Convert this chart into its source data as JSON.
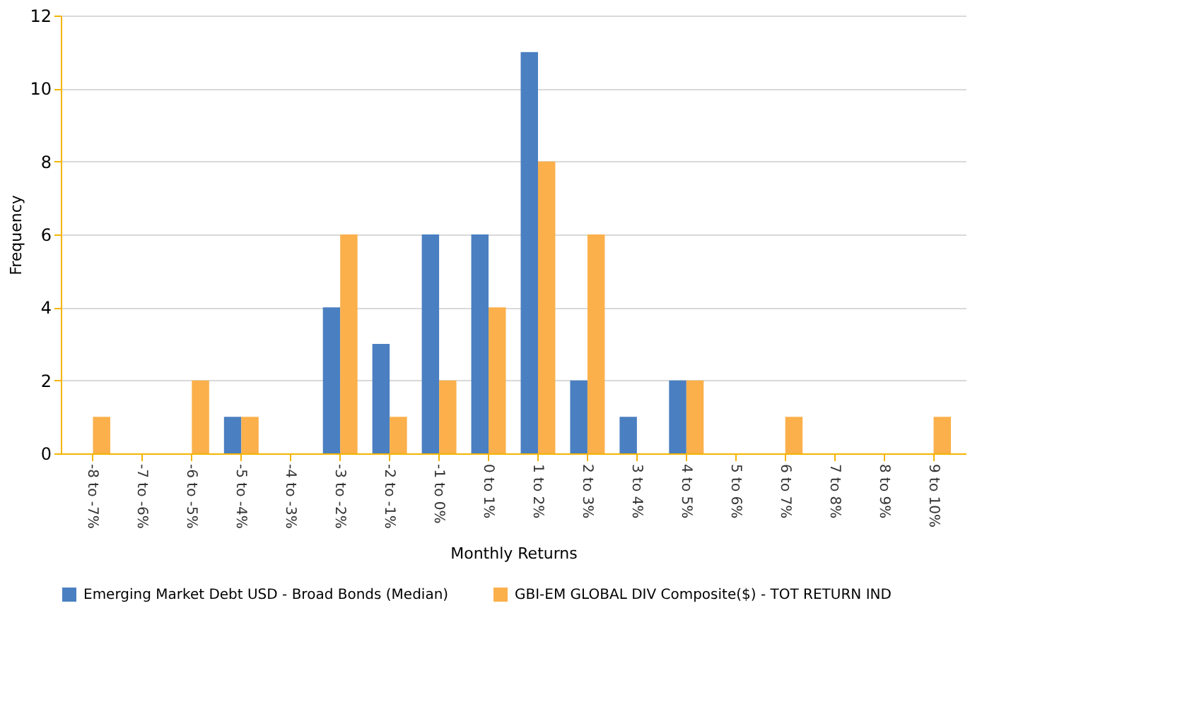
{
  "chart_data": {
    "type": "bar",
    "xlabel": "Monthly Returns",
    "ylabel": "Frequency",
    "categories": [
      "-8 to -7%",
      "-7 to -6%",
      "-6 to -5%",
      "-5 to -4%",
      "-4 to -3%",
      "-3 to -2%",
      "-2 to -1%",
      "-1 to 0%",
      "0 to 1%",
      "1 to 2%",
      "2 to 3%",
      "3 to 4%",
      "4 to 5%",
      "5 to 6%",
      "6 to 7%",
      "7 to 8%",
      "8 to 9%",
      "9 to 10%"
    ],
    "series": [
      {
        "name": "Emerging Market Debt USD - Broad Bonds (Median)",
        "color": "#4a7fc1",
        "values": [
          0,
          0,
          0,
          1,
          0,
          4,
          3,
          6,
          6,
          11,
          2,
          1,
          2,
          0,
          0,
          0,
          0,
          0
        ]
      },
      {
        "name": "GBI-EM GLOBAL DIV Composite($) - TOT RETURN IND",
        "color": "#fbb04b",
        "values": [
          1,
          0,
          2,
          1,
          0,
          6,
          1,
          2,
          4,
          8,
          6,
          0,
          2,
          0,
          1,
          0,
          0,
          1
        ]
      }
    ],
    "ylim": [
      0,
      12
    ],
    "yticks": [
      0,
      2,
      4,
      6,
      8,
      10,
      12
    ],
    "grid": "y",
    "legend": "bottom"
  }
}
